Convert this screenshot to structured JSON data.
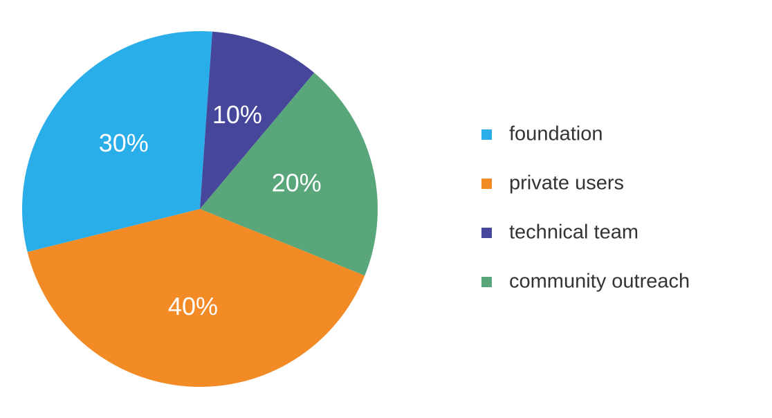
{
  "chart_data": {
    "type": "pie",
    "categories": [
      "foundation",
      "private users",
      "technical team",
      "community outreach"
    ],
    "values": [
      30,
      40,
      10,
      20
    ],
    "value_labels": [
      "30%",
      "40%",
      "10%",
      "20%"
    ],
    "colors": [
      "#2aaeea",
      "#f28a26",
      "#46479b",
      "#59a67a"
    ]
  }
}
